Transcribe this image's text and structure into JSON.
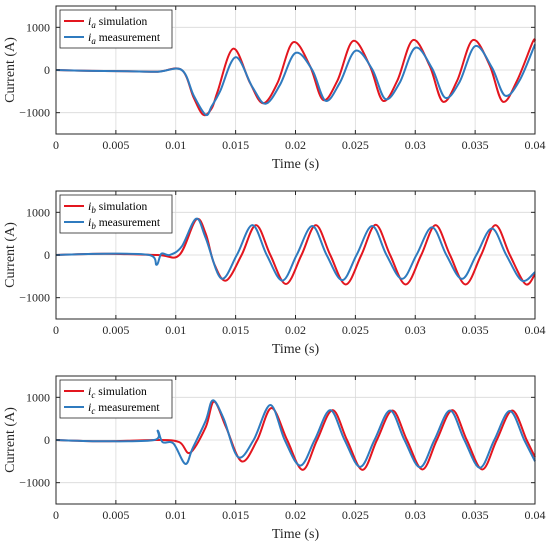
{
  "colors": {
    "simulation": "#e3161f",
    "measurement": "#2f7bbf"
  },
  "chart_data": [
    {
      "type": "line",
      "xlabel": "Time (s)",
      "ylabel": "Current  (A)",
      "xlim": [
        0,
        0.04
      ],
      "ylim": [
        -1500,
        1500
      ],
      "xticks": [
        "0",
        "0.005",
        "0.01",
        "0.015",
        "0.02",
        "0.025",
        "0.03",
        "0.035",
        "0.04"
      ],
      "yticks": [
        "-1000",
        "0",
        "1000"
      ],
      "grid": true,
      "legend_position": "top-left",
      "series": [
        {
          "name": "ia simulation",
          "sym": "i",
          "sub": "a",
          "label": "simulation",
          "color": "#e3161f",
          "x": [
            0,
            0.003,
            0.006,
            0.0085,
            0.0105,
            0.0115,
            0.0123,
            0.013,
            0.0135,
            0.0148,
            0.0162,
            0.0173,
            0.0185,
            0.0198,
            0.0212,
            0.0223,
            0.0235,
            0.0248,
            0.0262,
            0.0273,
            0.0285,
            0.0298,
            0.0312,
            0.0323,
            0.0335,
            0.0348,
            0.0362,
            0.0373,
            0.0385,
            0.0398,
            0.04
          ],
          "y": [
            0,
            -20,
            -30,
            -40,
            0,
            -650,
            -1050,
            -900,
            -500,
            500,
            -300,
            -780,
            -300,
            650,
            100,
            -700,
            -250,
            680,
            100,
            -720,
            -250,
            700,
            100,
            -740,
            -250,
            700,
            120,
            -740,
            -250,
            650,
            670
          ]
        },
        {
          "name": "ia measurement",
          "sym": "i",
          "sub": "a",
          "label": "measurement",
          "color": "#2f7bbf",
          "x": [
            0,
            0.003,
            0.006,
            0.0085,
            0.0105,
            0.0115,
            0.0125,
            0.013,
            0.0137,
            0.015,
            0.0164,
            0.0175,
            0.0187,
            0.02,
            0.0214,
            0.0225,
            0.0237,
            0.025,
            0.0264,
            0.0275,
            0.0287,
            0.03,
            0.0314,
            0.0325,
            0.0337,
            0.035,
            0.0364,
            0.0375,
            0.0387,
            0.04
          ],
          "y": [
            0,
            -20,
            -30,
            -40,
            0,
            -600,
            -1050,
            -850,
            -500,
            300,
            -400,
            -790,
            -350,
            400,
            0,
            -720,
            -300,
            450,
            20,
            -680,
            -300,
            520,
            40,
            -650,
            -280,
            560,
            60,
            -600,
            -250,
            600
          ]
        },
        {
          "name": "ib simulation",
          "sym": "i",
          "sub": "b",
          "label": "simulation",
          "color": "#e3161f",
          "x": [
            0,
            0.004,
            0.0085,
            0.0103,
            0.0117,
            0.0125,
            0.0132,
            0.0142,
            0.0155,
            0.0167,
            0.0179,
            0.0192,
            0.0205,
            0.0217,
            0.0229,
            0.0242,
            0.0255,
            0.0267,
            0.0279,
            0.0292,
            0.0305,
            0.0317,
            0.0329,
            0.0342,
            0.0355,
            0.0367,
            0.0379,
            0.0392,
            0.04
          ],
          "y": [
            0,
            30,
            0,
            0,
            830,
            500,
            -200,
            -600,
            0,
            700,
            0,
            -680,
            0,
            700,
            0,
            -690,
            0,
            710,
            0,
            -690,
            0,
            700,
            0,
            -690,
            0,
            700,
            0,
            -680,
            -450
          ]
        },
        {
          "name": "ib measurement",
          "sym": "i",
          "sub": "b",
          "label": "measurement",
          "color": "#2f7bbf",
          "x": [
            0,
            0.004,
            0.0078,
            0.0084,
            0.0088,
            0.0095,
            0.0105,
            0.0117,
            0.0125,
            0.0138,
            0.0151,
            0.0164,
            0.0176,
            0.0189,
            0.0201,
            0.0214,
            0.0226,
            0.0239,
            0.0251,
            0.0264,
            0.0276,
            0.0289,
            0.0301,
            0.0314,
            0.0326,
            0.0339,
            0.0351,
            0.0364,
            0.0376,
            0.0389,
            0.04
          ],
          "y": [
            0,
            30,
            0,
            -230,
            30,
            0,
            200,
            850,
            400,
            -550,
            0,
            700,
            0,
            -600,
            0,
            680,
            0,
            -590,
            0,
            680,
            0,
            -560,
            0,
            650,
            0,
            -560,
            0,
            620,
            0,
            -600,
            -400
          ]
        },
        {
          "name": "ic simulation",
          "sym": "i",
          "sub": "c",
          "label": "simulation",
          "color": "#e3161f",
          "x": [
            0,
            0.004,
            0.0085,
            0.0103,
            0.0112,
            0.0125,
            0.0132,
            0.0142,
            0.0155,
            0.0168,
            0.018,
            0.0193,
            0.0206,
            0.0218,
            0.0231,
            0.0243,
            0.0256,
            0.0268,
            0.0281,
            0.0293,
            0.0306,
            0.0318,
            0.0331,
            0.0343,
            0.0356,
            0.0368,
            0.0381,
            0.0393,
            0.04
          ],
          "y": [
            0,
            -30,
            0,
            -50,
            -300,
            300,
            900,
            300,
            -500,
            0,
            750,
            0,
            -700,
            0,
            700,
            0,
            -700,
            0,
            690,
            0,
            -690,
            0,
            700,
            0,
            -690,
            0,
            690,
            0,
            -400
          ]
        },
        {
          "name": "ic measurement",
          "sym": "i",
          "sub": "c",
          "label": "measurement",
          "color": "#2f7bbf",
          "x": [
            0,
            0.004,
            0.0082,
            0.0085,
            0.0089,
            0.0098,
            0.0108,
            0.0114,
            0.0125,
            0.0131,
            0.014,
            0.0152,
            0.0165,
            0.0179,
            0.0191,
            0.0204,
            0.0216,
            0.0229,
            0.0241,
            0.0254,
            0.0266,
            0.0279,
            0.0291,
            0.0304,
            0.0316,
            0.0329,
            0.0341,
            0.0354,
            0.0366,
            0.0379,
            0.0391,
            0.04
          ],
          "y": [
            0,
            -30,
            0,
            220,
            -50,
            -80,
            -560,
            -200,
            450,
            930,
            500,
            -400,
            0,
            820,
            0,
            -600,
            0,
            700,
            0,
            -630,
            0,
            690,
            0,
            -640,
            0,
            690,
            0,
            -650,
            0,
            680,
            0,
            -500
          ]
        }
      ]
    }
  ]
}
